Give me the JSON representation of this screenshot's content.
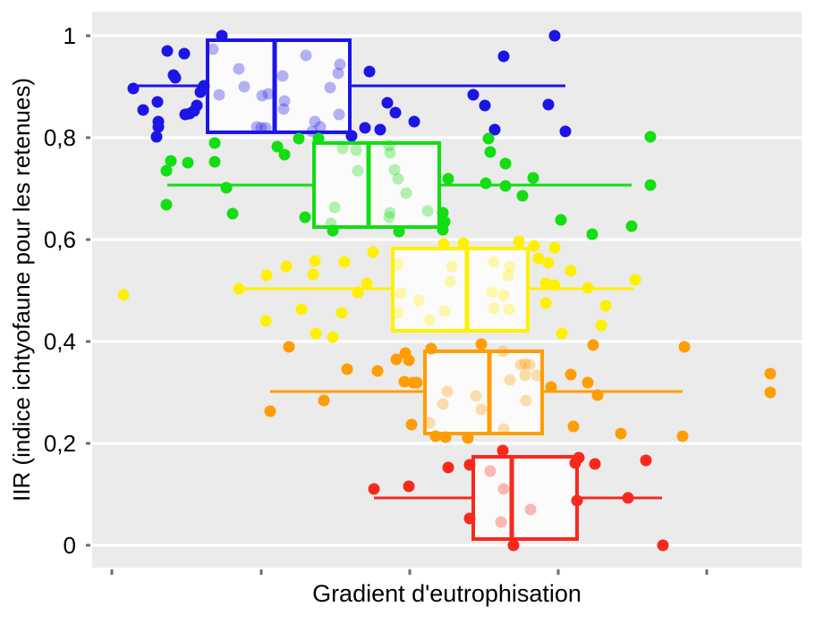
{
  "figure": {
    "background": "#ffffff",
    "plot_background": "#ebebeb",
    "grid_color": "#ffffff",
    "tick_mark_color": "#6e6e6e",
    "text_color": "#000000"
  },
  "chart_data": {
    "type": "boxplot",
    "orientation": "horizontal",
    "subtype": "boxplot_with_jittered_scatter",
    "title": "",
    "xlabel": "Gradient d'eutrophisation",
    "ylabel": "IIR (indice ichtyofaune pour les retenues)",
    "grid": true,
    "legend": false,
    "x_axis": {
      "range": [
        0,
        1
      ],
      "tick_positions": [
        0.028,
        0.238,
        0.448,
        0.657,
        0.866
      ],
      "tick_labels": [
        "",
        "",
        "",
        "",
        ""
      ]
    },
    "y_axis": {
      "range": [
        -0.044,
        1.047
      ],
      "ticks": [
        {
          "value": 1.0,
          "label": "1"
        },
        {
          "value": 0.8,
          "label": "0,8"
        },
        {
          "value": 0.6,
          "label": "0,6"
        },
        {
          "value": 0.4,
          "label": "0,4"
        },
        {
          "value": 0.2,
          "label": "0,2"
        },
        {
          "value": 0.0,
          "label": "0"
        }
      ]
    },
    "groups": [
      {
        "name": "class-blue",
        "color": "#1c15e6",
        "iir_level": 0.9,
        "box": {
          "whisker_low": 0.055,
          "q1": 0.16,
          "median": 0.257,
          "q3": 0.366,
          "whisker_high": 0.667,
          "whisker_y": 0.901,
          "box_y_top": 0.995,
          "box_y_bottom": 0.807
        },
        "points": [
          [
            0.106,
            0.97
          ],
          [
            0.13,
            0.965
          ],
          [
            0.183,
            1.0
          ],
          [
            0.058,
            0.896
          ],
          [
            0.115,
            0.923
          ],
          [
            0.117,
            0.918
          ],
          [
            0.092,
            0.87
          ],
          [
            0.072,
            0.854
          ],
          [
            0.093,
            0.832
          ],
          [
            0.093,
            0.821
          ],
          [
            0.091,
            0.802
          ],
          [
            0.131,
            0.846
          ],
          [
            0.137,
            0.847
          ],
          [
            0.144,
            0.853
          ],
          [
            0.148,
            0.863
          ],
          [
            0.153,
            0.889
          ],
          [
            0.158,
            0.902
          ],
          [
            0.385,
            0.819
          ],
          [
            0.406,
            0.816
          ],
          [
            0.366,
            0.803
          ],
          [
            0.427,
            0.849
          ],
          [
            0.416,
            0.868
          ],
          [
            0.454,
            0.832
          ],
          [
            0.391,
            0.93
          ],
          [
            0.652,
            1.0
          ],
          [
            0.58,
            0.96
          ],
          [
            0.537,
            0.884
          ],
          [
            0.554,
            0.863
          ],
          [
            0.643,
            0.865
          ],
          [
            0.567,
            0.816
          ],
          [
            0.667,
            0.812
          ]
        ],
        "points_inside_box": [
          [
            0.17,
            0.974
          ],
          [
            0.207,
            0.935
          ],
          [
            0.214,
            0.9
          ],
          [
            0.179,
            0.884
          ],
          [
            0.24,
            0.882
          ],
          [
            0.248,
            0.886
          ],
          [
            0.232,
            0.821
          ],
          [
            0.238,
            0.819
          ],
          [
            0.245,
            0.819
          ],
          [
            0.269,
            0.921
          ],
          [
            0.301,
            0.961
          ],
          [
            0.271,
            0.872
          ],
          [
            0.27,
            0.856
          ],
          [
            0.349,
            0.944
          ],
          [
            0.347,
            0.926
          ],
          [
            0.335,
            0.898
          ],
          [
            0.348,
            0.846
          ],
          [
            0.314,
            0.832
          ],
          [
            0.322,
            0.821
          ],
          [
            0.31,
            0.812
          ]
        ]
      },
      {
        "name": "class-green",
        "color": "#13dd13",
        "iir_level": 0.7,
        "box": {
          "whisker_low": 0.106,
          "q1": 0.31,
          "median": 0.39,
          "q3": 0.492,
          "whisker_high": 0.76,
          "whisker_y": 0.707,
          "box_y_top": 0.793,
          "box_y_bottom": 0.621
        },
        "points": [
          [
            0.173,
            0.789
          ],
          [
            0.111,
            0.754
          ],
          [
            0.135,
            0.751
          ],
          [
            0.173,
            0.753
          ],
          [
            0.105,
            0.735
          ],
          [
            0.261,
            0.782
          ],
          [
            0.271,
            0.767
          ],
          [
            0.291,
            0.798
          ],
          [
            0.189,
            0.702
          ],
          [
            0.105,
            0.668
          ],
          [
            0.198,
            0.651
          ],
          [
            0.3,
            0.644
          ],
          [
            0.319,
            0.798
          ],
          [
            0.339,
            0.618
          ],
          [
            0.433,
            0.616
          ],
          [
            0.559,
            0.798
          ],
          [
            0.561,
            0.772
          ],
          [
            0.583,
            0.749
          ],
          [
            0.502,
            0.719
          ],
          [
            0.555,
            0.711
          ],
          [
            0.583,
            0.705
          ],
          [
            0.622,
            0.721
          ],
          [
            0.607,
            0.686
          ],
          [
            0.494,
            0.653
          ],
          [
            0.497,
            0.635
          ],
          [
            0.494,
            0.619
          ],
          [
            0.661,
            0.639
          ],
          [
            0.705,
            0.611
          ],
          [
            0.76,
            0.626
          ],
          [
            0.787,
            0.707
          ],
          [
            0.787,
            0.802
          ]
        ],
        "points_inside_box": [
          [
            0.353,
            0.779
          ],
          [
            0.372,
            0.775
          ],
          [
            0.375,
            0.735
          ],
          [
            0.342,
            0.663
          ],
          [
            0.337,
            0.632
          ],
          [
            0.419,
            0.784
          ],
          [
            0.42,
            0.77
          ],
          [
            0.426,
            0.737
          ],
          [
            0.431,
            0.719
          ],
          [
            0.443,
            0.691
          ],
          [
            0.42,
            0.653
          ],
          [
            0.419,
            0.644
          ],
          [
            0.473,
            0.656
          ]
        ]
      },
      {
        "name": "class-yellow",
        "color": "#fff000",
        "iir_level": 0.5,
        "box": {
          "whisker_low": 0.207,
          "q1": 0.421,
          "median": 0.528,
          "q3": 0.617,
          "whisker_high": 0.763,
          "whisker_y": 0.504,
          "box_y_top": 0.586,
          "box_y_bottom": 0.418
        },
        "points": [
          [
            0.044,
            0.491
          ],
          [
            0.207,
            0.504
          ],
          [
            0.246,
            0.53
          ],
          [
            0.274,
            0.547
          ],
          [
            0.314,
            0.558
          ],
          [
            0.311,
            0.532
          ],
          [
            0.356,
            0.556
          ],
          [
            0.387,
            0.514
          ],
          [
            0.396,
            0.575
          ],
          [
            0.375,
            0.496
          ],
          [
            0.295,
            0.463
          ],
          [
            0.245,
            0.44
          ],
          [
            0.352,
            0.456
          ],
          [
            0.315,
            0.416
          ],
          [
            0.339,
            0.409
          ],
          [
            0.496,
            0.591
          ],
          [
            0.523,
            0.593
          ],
          [
            0.602,
            0.596
          ],
          [
            0.623,
            0.588
          ],
          [
            0.652,
            0.584
          ],
          [
            0.629,
            0.563
          ],
          [
            0.643,
            0.554
          ],
          [
            0.675,
            0.539
          ],
          [
            0.639,
            0.514
          ],
          [
            0.652,
            0.511
          ],
          [
            0.699,
            0.505
          ],
          [
            0.765,
            0.521
          ],
          [
            0.639,
            0.475
          ],
          [
            0.724,
            0.47
          ],
          [
            0.718,
            0.432
          ],
          [
            0.662,
            0.416
          ]
        ],
        "points_inside_box": [
          [
            0.431,
            0.551
          ],
          [
            0.435,
            0.495
          ],
          [
            0.46,
            0.481
          ],
          [
            0.431,
            0.456
          ],
          [
            0.475,
            0.442
          ],
          [
            0.497,
            0.46
          ],
          [
            0.507,
            0.547
          ],
          [
            0.504,
            0.518
          ],
          [
            0.566,
            0.556
          ],
          [
            0.589,
            0.547
          ],
          [
            0.586,
            0.53
          ],
          [
            0.564,
            0.496
          ],
          [
            0.58,
            0.491
          ],
          [
            0.566,
            0.465
          ],
          [
            0.588,
            0.463
          ]
        ]
      },
      {
        "name": "class-orange",
        "color": "#ff9d05",
        "iir_level": 0.3,
        "box": {
          "whisker_low": 0.251,
          "q1": 0.467,
          "median": 0.56,
          "q3": 0.637,
          "whisker_high": 0.832,
          "whisker_y": 0.302,
          "box_y_top": 0.384,
          "box_y_bottom": 0.216
        },
        "points": [
          [
            0.277,
            0.389
          ],
          [
            0.359,
            0.346
          ],
          [
            0.402,
            0.342
          ],
          [
            0.429,
            0.365
          ],
          [
            0.441,
            0.377
          ],
          [
            0.446,
            0.363
          ],
          [
            0.327,
            0.284
          ],
          [
            0.251,
            0.263
          ],
          [
            0.44,
            0.321
          ],
          [
            0.453,
            0.319
          ],
          [
            0.458,
            0.319
          ],
          [
            0.45,
            0.237
          ],
          [
            0.478,
            0.386
          ],
          [
            0.549,
            0.395
          ],
          [
            0.53,
            0.211
          ],
          [
            0.498,
            0.212
          ],
          [
            0.484,
            0.214
          ],
          [
            0.706,
            0.393
          ],
          [
            0.835,
            0.389
          ],
          [
            0.675,
            0.335
          ],
          [
            0.699,
            0.319
          ],
          [
            0.647,
            0.311
          ],
          [
            0.712,
            0.295
          ],
          [
            0.678,
            0.233
          ],
          [
            0.745,
            0.219
          ],
          [
            0.832,
            0.214
          ],
          [
            0.956,
            0.337
          ],
          [
            0.956,
            0.3
          ]
        ],
        "points_inside_box": [
          [
            0.501,
            0.302
          ],
          [
            0.494,
            0.277
          ],
          [
            0.541,
            0.293
          ],
          [
            0.549,
            0.267
          ],
          [
            0.475,
            0.24
          ],
          [
            0.579,
            0.381
          ],
          [
            0.589,
            0.325
          ],
          [
            0.604,
            0.354
          ],
          [
            0.61,
            0.356
          ],
          [
            0.617,
            0.354
          ],
          [
            0.61,
            0.333
          ],
          [
            0.612,
            0.284
          ],
          [
            0.58,
            0.228
          ],
          [
            0.627,
            0.333
          ]
        ]
      },
      {
        "name": "class-red",
        "color": "#f8281c",
        "iir_level": 0.1,
        "box": {
          "whisker_low": 0.397,
          "q1": 0.535,
          "median": 0.591,
          "q3": 0.686,
          "whisker_high": 0.803,
          "whisker_y": 0.093,
          "box_y_top": 0.177,
          "box_y_bottom": 0.009
        },
        "points": [
          [
            0.397,
            0.111
          ],
          [
            0.446,
            0.116
          ],
          [
            0.502,
            0.153
          ],
          [
            0.532,
            0.158
          ],
          [
            0.532,
            0.053
          ],
          [
            0.579,
            0.186
          ],
          [
            0.594,
            0.0
          ],
          [
            0.686,
            0.172
          ],
          [
            0.681,
            0.161
          ],
          [
            0.709,
            0.16
          ],
          [
            0.781,
            0.167
          ],
          [
            0.684,
            0.088
          ],
          [
            0.755,
            0.093
          ],
          [
            0.805,
            0.0
          ]
        ],
        "points_inside_box": [
          [
            0.561,
            0.146
          ],
          [
            0.58,
            0.111
          ],
          [
            0.618,
            0.07
          ],
          [
            0.576,
            0.046
          ]
        ]
      }
    ]
  }
}
